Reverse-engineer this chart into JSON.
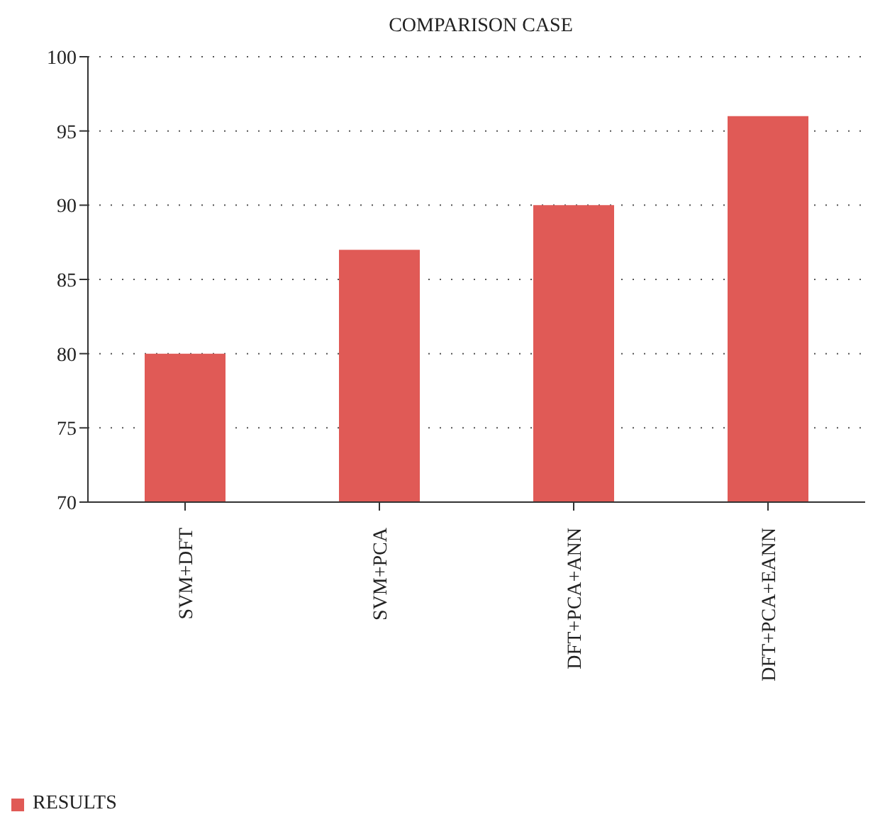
{
  "chart_data": {
    "type": "bar",
    "title": "COMPARISON CASE",
    "categories": [
      "SVM+DFT",
      "SVM+PCA",
      "DFT+PCA+ANN",
      "DFT+PCA+EANN"
    ],
    "series": [
      {
        "name": "RESULTS",
        "color": "#e05a56",
        "values": [
          80,
          87,
          90,
          96
        ]
      }
    ],
    "ylim": [
      70,
      100
    ],
    "yticks": [
      70,
      75,
      80,
      85,
      90,
      95,
      100
    ],
    "grid": "y",
    "legend": "bottom left"
  }
}
